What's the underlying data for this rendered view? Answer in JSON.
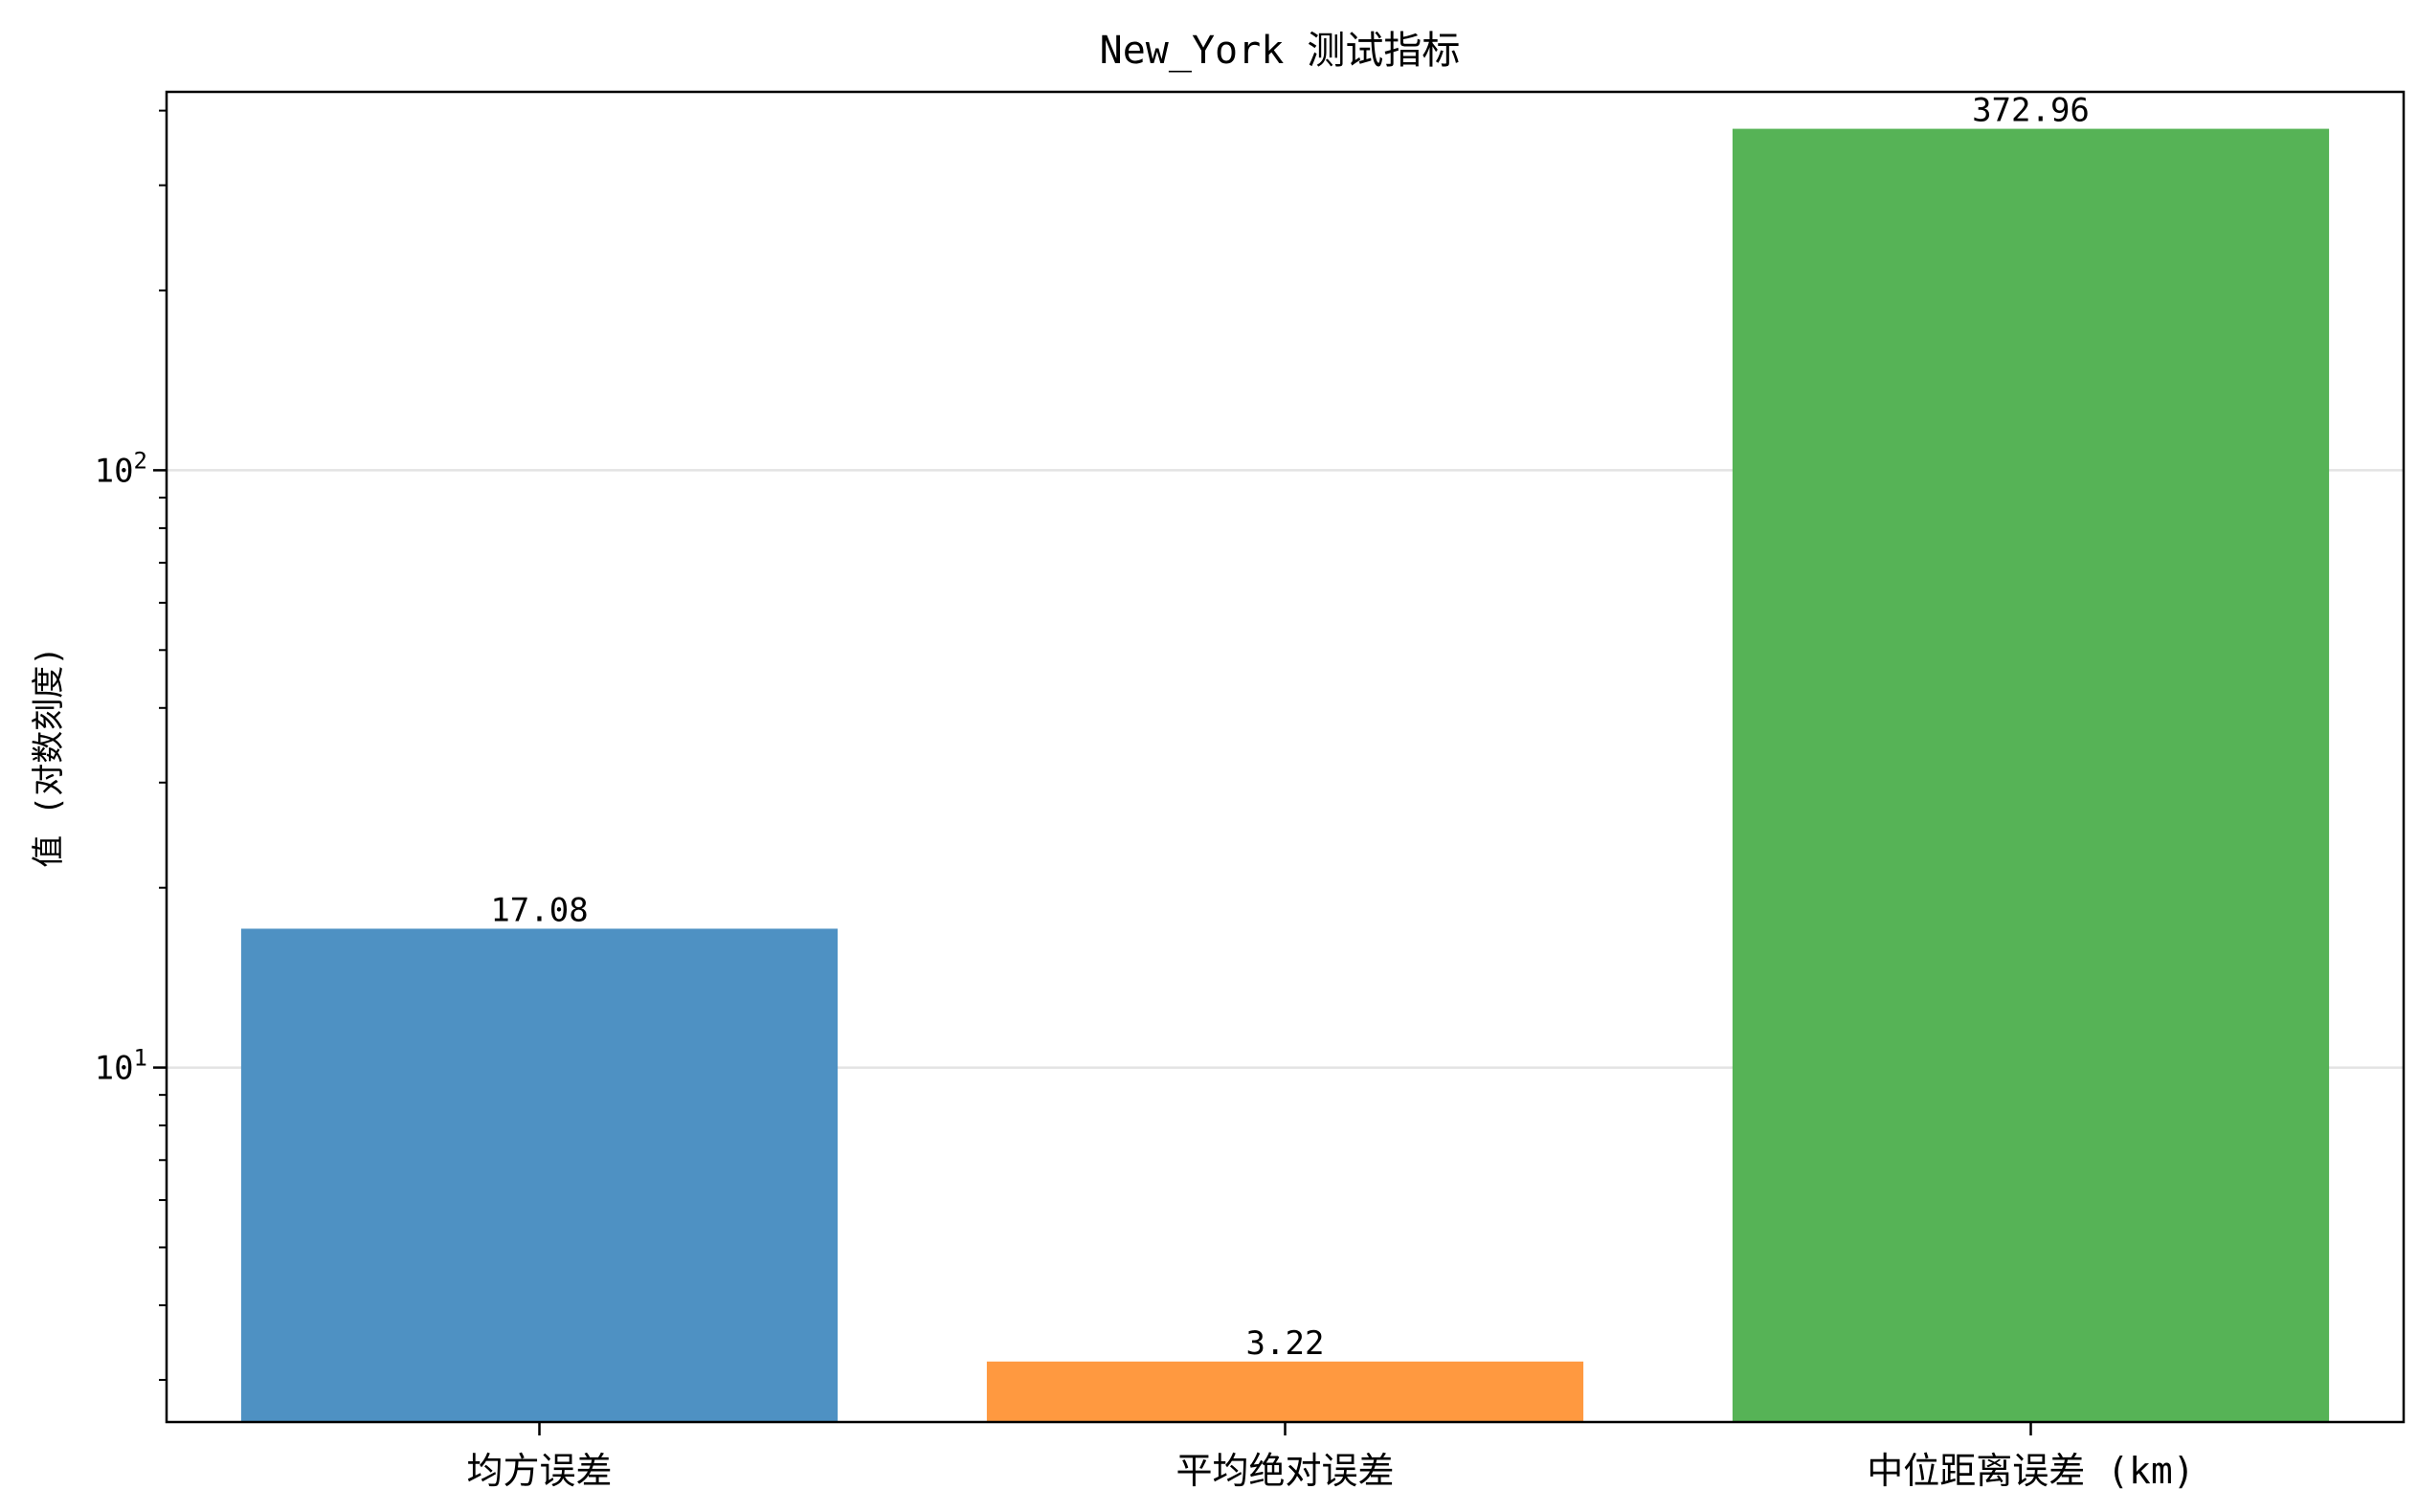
{
  "chart_data": {
    "type": "bar",
    "title": "New_York 测试指标",
    "xlabel": "",
    "ylabel": "值 (对数刻度)",
    "categories": [
      "均方误差",
      "平均绝对误差",
      "中位距离误差 (km)"
    ],
    "values": [
      17.08,
      3.22,
      372.96
    ],
    "value_labels": [
      "17.08",
      "3.22",
      "372.96"
    ],
    "colors": [
      "#4e91c3",
      "#ff9940",
      "#56b356"
    ],
    "yscale": "log",
    "ylim": [
      2.55,
      430
    ],
    "yticks": [
      {
        "value": 10,
        "base": "10",
        "exp": "1"
      },
      {
        "value": 100,
        "base": "10",
        "exp": "2"
      }
    ],
    "grid": "y-major",
    "legend": "none"
  }
}
